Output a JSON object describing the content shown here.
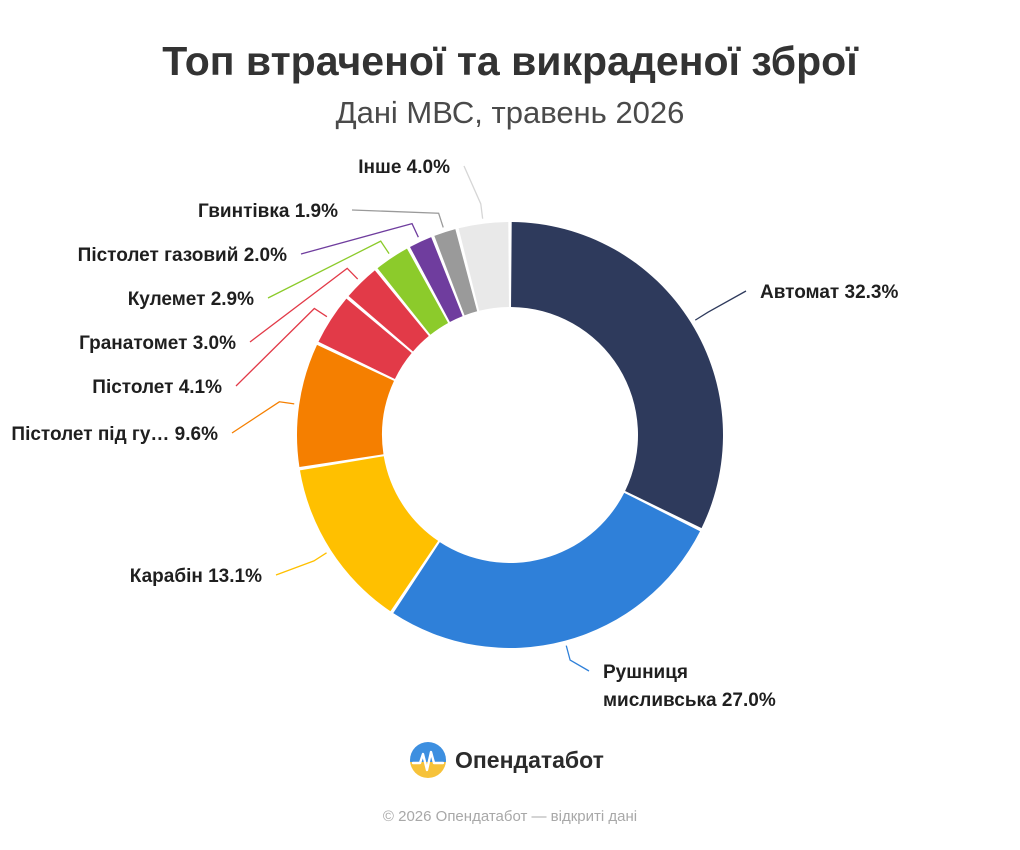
{
  "header": {
    "title": "Топ втраченої та викраденої зброї",
    "subtitle": "Дані МВС, травень 2026"
  },
  "brand": {
    "name": "Опендатабот",
    "icon": "opendatabot-logo-icon"
  },
  "footer": {
    "text": "© 2026 Опендатабот — відкриті дані"
  },
  "chart_data": {
    "type": "pie",
    "donut": true,
    "title": "Топ втраченої та викраденої зброї",
    "subtitle": "Дані МВС, травень 2026",
    "value_unit": "%",
    "slices": [
      {
        "label": "Автомат",
        "value": 32.3,
        "color": "#2e3a5c",
        "text": "Автомат 32.3%"
      },
      {
        "label": "Рушниця мисливська",
        "value": 27.0,
        "color": "#2f80d9",
        "text_lines": [
          "Рушниця",
          "мисливська 27.0%"
        ]
      },
      {
        "label": "Карабін",
        "value": 13.1,
        "color": "#ffc000",
        "text": "Карабін 13.1%"
      },
      {
        "label": "Пістолет під гу…",
        "value": 9.6,
        "color": "#f57f00",
        "text": "Пістолет під гу… 9.6%"
      },
      {
        "label": "Пістолет",
        "value": 4.1,
        "color": "#e23a48",
        "text": "Пістолет 4.1%"
      },
      {
        "label": "Гранатомет",
        "value": 3.0,
        "color": "#e23a48",
        "text": "Гранатомет 3.0%"
      },
      {
        "label": "Кулемет",
        "value": 2.9,
        "color": "#8ccb2b",
        "text": "Кулемет 2.9%"
      },
      {
        "label": "Пістолет газовий",
        "value": 2.0,
        "color": "#6f3d9e",
        "text": "Пістолет газовий 2.0%"
      },
      {
        "label": "Гвинтівка",
        "value": 1.9,
        "color": "#9a9a9a",
        "text": "Гвинтівка 1.9%"
      },
      {
        "label": "Інше",
        "value": 4.0,
        "color": "#e9e9e9",
        "text": "Інше 4.0%"
      }
    ]
  }
}
